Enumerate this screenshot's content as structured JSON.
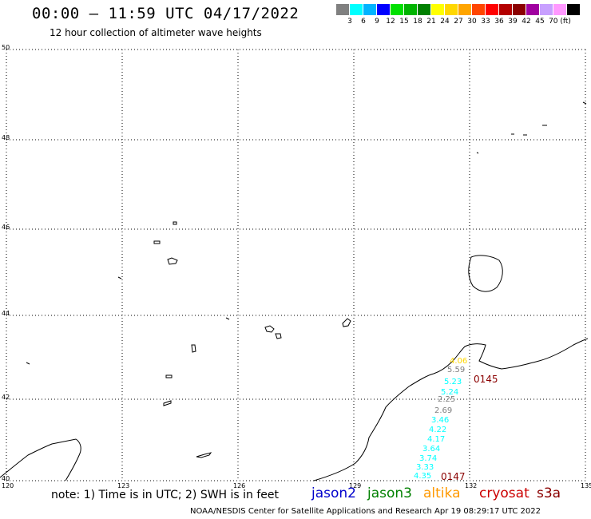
{
  "header": {
    "title": "00:00 – 11:59 UTC 04/17/2022",
    "subtitle": "12 hour collection of altimeter wave heights"
  },
  "scale": {
    "colors": [
      "#808080",
      "#00ffff",
      "#00b4ff",
      "#0000ff",
      "#00e000",
      "#00b400",
      "#008000",
      "#ffff00",
      "#ffd700",
      "#ffa500",
      "#ff4500",
      "#ff0000",
      "#b40000",
      "#8b0000",
      "#a000a0",
      "#c8a0ff",
      "#ff99ff",
      "#000000"
    ],
    "labels": [
      "3",
      "6",
      "9",
      "12",
      "15",
      "18",
      "21",
      "24",
      "27",
      "30",
      "33",
      "36",
      "39",
      "42",
      "45",
      "70 (ft)"
    ]
  },
  "map": {
    "lat_ticks": [
      "50",
      "48",
      "46",
      "44",
      "42",
      "40"
    ],
    "lon_ticks": [
      "120",
      "123",
      "126",
      "129",
      "132",
      "135"
    ],
    "observations": [
      {
        "text": "5.59",
        "color": "#808080"
      },
      {
        "text": "5.23",
        "color": "#00ffff"
      },
      {
        "text": "5.24",
        "color": "#00ffff"
      },
      {
        "text": "2.69",
        "color": "#808080"
      },
      {
        "text": "2.25",
        "color": "#808080"
      },
      {
        "text": "3.46",
        "color": "#00ffff"
      },
      {
        "text": "4.22",
        "color": "#00ffff"
      },
      {
        "text": "4.17",
        "color": "#00ffff"
      },
      {
        "text": "3.64",
        "color": "#00ffff"
      },
      {
        "text": "3.74",
        "color": "#00ffff"
      },
      {
        "text": "3.33",
        "color": "#00ffff"
      },
      {
        "text": "4.35",
        "color": "#00ffff"
      },
      {
        "text": "4.06",
        "color": "#ffd700"
      }
    ],
    "pass_times": [
      {
        "text": "0145",
        "color": "#8b0000"
      },
      {
        "text": "0147",
        "color": "#8b0000"
      }
    ]
  },
  "footer": {
    "note": "note:  1) Time is in UTC;  2) SWH is in feet",
    "credit": "NOAA/NESDIS Center for Satellite Applications and Research    Apr 19 08:29:17 UTC 2022"
  },
  "satellites": [
    {
      "name": "jason2",
      "color": "#0000cc"
    },
    {
      "name": "jason3",
      "color": "#008000"
    },
    {
      "name": "altika",
      "color": "#ff9900"
    },
    {
      "name": "cryosat",
      "color": "#cc0000"
    },
    {
      "name": "s3a",
      "color": "#8b0000"
    }
  ]
}
